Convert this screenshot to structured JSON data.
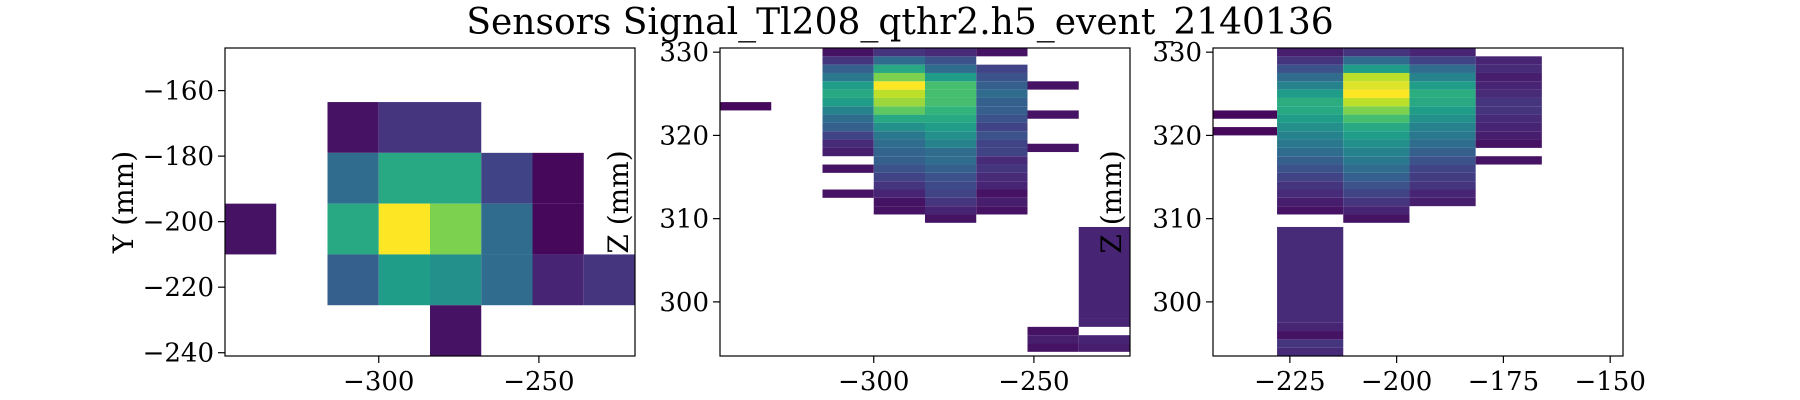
{
  "figure": {
    "title": "Sensors Signal_Tl208_qthr2.h5_event_2140136"
  },
  "chart_data": [
    {
      "type": "heatmap",
      "name": "xy",
      "xlabel": "",
      "ylabel": "Y (mm)",
      "xlim": [
        -348,
        -220
      ],
      "ylim": [
        -241,
        -147
      ],
      "xticks": [
        -300,
        -250
      ],
      "yticks": [
        -160,
        -180,
        -200,
        -220,
        -240
      ],
      "cells": [
        {
          "x0": -348,
          "x1": -332,
          "y0": -210,
          "y1": -194.5,
          "v": 0.05
        },
        {
          "x0": -316,
          "x1": -300,
          "y0": -179,
          "y1": -163.5,
          "v": 0.05
        },
        {
          "x0": -300,
          "x1": -284,
          "y0": -179,
          "y1": -163.5,
          "v": 0.15
        },
        {
          "x0": -284,
          "x1": -268,
          "y0": -179,
          "y1": -163.5,
          "v": 0.15
        },
        {
          "x0": -316,
          "x1": -300,
          "y0": -194.5,
          "y1": -179,
          "v": 0.35
        },
        {
          "x0": -300,
          "x1": -284,
          "y0": -194.5,
          "y1": -179,
          "v": 0.6
        },
        {
          "x0": -284,
          "x1": -268,
          "y0": -194.5,
          "y1": -179,
          "v": 0.6
        },
        {
          "x0": -268,
          "x1": -252,
          "y0": -194.5,
          "y1": -179,
          "v": 0.2
        },
        {
          "x0": -252,
          "x1": -236,
          "y0": -194.5,
          "y1": -179,
          "v": 0.02
        },
        {
          "x0": -316,
          "x1": -300,
          "y0": -210,
          "y1": -194.5,
          "v": 0.6
        },
        {
          "x0": -300,
          "x1": -284,
          "y0": -210,
          "y1": -194.5,
          "v": 1.0
        },
        {
          "x0": -284,
          "x1": -268,
          "y0": -210,
          "y1": -194.5,
          "v": 0.8
        },
        {
          "x0": -268,
          "x1": -252,
          "y0": -210,
          "y1": -194.5,
          "v": 0.35
        },
        {
          "x0": -252,
          "x1": -236,
          "y0": -210,
          "y1": -194.5,
          "v": 0.02
        },
        {
          "x0": -316,
          "x1": -300,
          "y0": -225.5,
          "y1": -210,
          "v": 0.3
        },
        {
          "x0": -300,
          "x1": -284,
          "y0": -225.5,
          "y1": -210,
          "v": 0.55
        },
        {
          "x0": -284,
          "x1": -268,
          "y0": -225.5,
          "y1": -210,
          "v": 0.5
        },
        {
          "x0": -268,
          "x1": -252,
          "y0": -225.5,
          "y1": -210,
          "v": 0.35
        },
        {
          "x0": -252,
          "x1": -236,
          "y0": -225.5,
          "y1": -210,
          "v": 0.1
        },
        {
          "x0": -236,
          "x1": -220,
          "y0": -225.5,
          "y1": -210,
          "v": 0.15
        },
        {
          "x0": -284,
          "x1": -268,
          "y0": -241,
          "y1": -225.5,
          "v": 0.05
        }
      ]
    },
    {
      "type": "heatmap",
      "name": "xz",
      "xlabel": "",
      "ylabel": "Z (mm)",
      "xlim": [
        -348,
        -220
      ],
      "ylim": [
        293.5,
        330.5
      ],
      "xticks": [
        -300,
        -250
      ],
      "yticks": [
        300,
        310,
        320,
        330
      ],
      "columns": [
        {
          "x0": -348,
          "x1": -332,
          "bins": [
            [
              323,
              324,
              0.02
            ]
          ]
        },
        {
          "x0": -316,
          "x1": -300,
          "bins": [
            [
              312.5,
              313.5,
              0.05
            ],
            [
              315.5,
              316.5,
              0.05
            ],
            [
              317.5,
              318.5,
              0.08
            ],
            [
              318.5,
              319.5,
              0.12
            ],
            [
              319.5,
              320.5,
              0.2
            ],
            [
              320.5,
              321.5,
              0.3
            ],
            [
              321.5,
              322.5,
              0.35
            ],
            [
              322.5,
              323.5,
              0.45
            ],
            [
              323.5,
              324.5,
              0.55
            ],
            [
              324.5,
              325.5,
              0.6
            ],
            [
              325.5,
              326.5,
              0.55
            ],
            [
              326.5,
              327.5,
              0.4
            ],
            [
              327.5,
              328.5,
              0.3
            ],
            [
              328.5,
              329.5,
              0.15
            ],
            [
              329.5,
              330.5,
              0.05
            ]
          ]
        },
        {
          "x0": -300,
          "x1": -284,
          "bins": [
            [
              310.5,
              311.5,
              0.05
            ],
            [
              311.5,
              312.5,
              0.05
            ],
            [
              312.5,
              313.5,
              0.1
            ],
            [
              313.5,
              314.5,
              0.15
            ],
            [
              314.5,
              315.5,
              0.2
            ],
            [
              315.5,
              316.5,
              0.25
            ],
            [
              316.5,
              317.5,
              0.3
            ],
            [
              317.5,
              318.5,
              0.32
            ],
            [
              318.5,
              319.5,
              0.35
            ],
            [
              319.5,
              320.5,
              0.4
            ],
            [
              320.5,
              321.5,
              0.5
            ],
            [
              321.5,
              322.5,
              0.6
            ],
            [
              322.5,
              323.5,
              0.75
            ],
            [
              323.5,
              324.5,
              0.85
            ],
            [
              324.5,
              325.5,
              0.9
            ],
            [
              325.5,
              326.5,
              1.0
            ],
            [
              326.5,
              327.5,
              0.8
            ],
            [
              327.5,
              328.5,
              0.6
            ],
            [
              328.5,
              329.5,
              0.35
            ],
            [
              329.5,
              330.5,
              0.15
            ]
          ]
        },
        {
          "x0": -284,
          "x1": -268,
          "bins": [
            [
              309.5,
              310.5,
              0.05
            ],
            [
              310.5,
              311.5,
              0.1
            ],
            [
              311.5,
              312.5,
              0.15
            ],
            [
              312.5,
              313.5,
              0.2
            ],
            [
              313.5,
              314.5,
              0.22
            ],
            [
              314.5,
              315.5,
              0.25
            ],
            [
              315.5,
              316.5,
              0.3
            ],
            [
              316.5,
              317.5,
              0.35
            ],
            [
              317.5,
              318.5,
              0.35
            ],
            [
              318.5,
              319.5,
              0.45
            ],
            [
              319.5,
              320.5,
              0.5
            ],
            [
              320.5,
              321.5,
              0.55
            ],
            [
              321.5,
              322.5,
              0.6
            ],
            [
              322.5,
              323.5,
              0.65
            ],
            [
              323.5,
              324.5,
              0.7
            ],
            [
              324.5,
              325.5,
              0.7
            ],
            [
              325.5,
              326.5,
              0.7
            ],
            [
              326.5,
              327.5,
              0.55
            ],
            [
              327.5,
              328.5,
              0.35
            ],
            [
              328.5,
              329.5,
              0.25
            ],
            [
              329.5,
              330.5,
              0.12
            ]
          ]
        },
        {
          "x0": -268,
          "x1": -252,
          "bins": [
            [
              310.5,
              311.5,
              0.05
            ],
            [
              311.5,
              312.5,
              0.08
            ],
            [
              312.5,
              313.5,
              0.05
            ],
            [
              313.5,
              314.5,
              0.1
            ],
            [
              314.5,
              315.5,
              0.12
            ],
            [
              315.5,
              316.5,
              0.15
            ],
            [
              316.5,
              317.5,
              0.12
            ],
            [
              317.5,
              318.5,
              0.2
            ],
            [
              318.5,
              319.5,
              0.2
            ],
            [
              319.5,
              320.5,
              0.25
            ],
            [
              320.5,
              321.5,
              0.2
            ],
            [
              321.5,
              322.5,
              0.25
            ],
            [
              322.5,
              323.5,
              0.3
            ],
            [
              323.5,
              324.5,
              0.3
            ],
            [
              324.5,
              325.5,
              0.35
            ],
            [
              325.5,
              326.5,
              0.3
            ],
            [
              326.5,
              327.5,
              0.25
            ],
            [
              327.5,
              328.5,
              0.2
            ],
            [
              329.5,
              330.5,
              0.05
            ]
          ]
        },
        {
          "x0": -252,
          "x1": -236,
          "bins": [
            [
              294,
              295,
              0.05
            ],
            [
              295,
              296,
              0.08
            ],
            [
              296,
              297,
              0.05
            ],
            [
              318,
              319,
              0.05
            ],
            [
              322,
              323,
              0.05
            ],
            [
              325.5,
              326.5,
              0.05
            ]
          ]
        },
        {
          "x0": -236,
          "x1": -220,
          "bins": [
            [
              294,
              295,
              0.08
            ],
            [
              295,
              296,
              0.1
            ],
            [
              297,
              298,
              0.1
            ],
            [
              298,
              309,
              0.1
            ]
          ]
        }
      ]
    },
    {
      "type": "heatmap",
      "name": "yz",
      "xlabel": "",
      "ylabel": "Z (mm)",
      "xlim": [
        -243,
        -147
      ],
      "ylim": [
        293.5,
        330.5
      ],
      "xticks": [
        -225,
        -200,
        -175,
        -150
      ],
      "yticks": [
        300,
        310,
        320,
        330
      ],
      "columns": [
        {
          "x0": -243,
          "x1": -228,
          "bins": [
            [
              320,
              321,
              0.02
            ],
            [
              322,
              323,
              0.02
            ]
          ]
        },
        {
          "x0": -228,
          "x1": -212.5,
          "bins": [
            [
              293.5,
              294.5,
              0.12
            ],
            [
              294.5,
              295.5,
              0.15
            ],
            [
              295.5,
              296.5,
              0.05
            ],
            [
              296.5,
              297.5,
              0.1
            ],
            [
              297.5,
              309,
              0.12
            ],
            [
              310.5,
              311.5,
              0.05
            ],
            [
              311.5,
              312.5,
              0.08
            ],
            [
              312.5,
              313.5,
              0.12
            ],
            [
              313.5,
              314.5,
              0.15
            ],
            [
              314.5,
              315.5,
              0.2
            ],
            [
              315.5,
              316.5,
              0.25
            ],
            [
              316.5,
              317.5,
              0.3
            ],
            [
              317.5,
              318.5,
              0.35
            ],
            [
              318.5,
              319.5,
              0.4
            ],
            [
              319.5,
              320.5,
              0.45
            ],
            [
              320.5,
              321.5,
              0.5
            ],
            [
              321.5,
              322.5,
              0.55
            ],
            [
              322.5,
              323.5,
              0.6
            ],
            [
              323.5,
              324.5,
              0.62
            ],
            [
              324.5,
              325.5,
              0.55
            ],
            [
              325.5,
              326.5,
              0.45
            ],
            [
              326.5,
              327.5,
              0.35
            ],
            [
              327.5,
              328.5,
              0.25
            ],
            [
              328.5,
              329.5,
              0.15
            ],
            [
              329.5,
              330.5,
              0.08
            ]
          ]
        },
        {
          "x0": -212.5,
          "x1": -197,
          "bins": [
            [
              309.5,
              310.5,
              0.05
            ],
            [
              310.5,
              311.5,
              0.1
            ],
            [
              311.5,
              312.5,
              0.15
            ],
            [
              312.5,
              313.5,
              0.2
            ],
            [
              313.5,
              314.5,
              0.25
            ],
            [
              314.5,
              315.5,
              0.3
            ],
            [
              315.5,
              316.5,
              0.35
            ],
            [
              316.5,
              317.5,
              0.4
            ],
            [
              317.5,
              318.5,
              0.45
            ],
            [
              318.5,
              319.5,
              0.5
            ],
            [
              319.5,
              320.5,
              0.55
            ],
            [
              320.5,
              321.5,
              0.6
            ],
            [
              321.5,
              322.5,
              0.7
            ],
            [
              322.5,
              323.5,
              0.8
            ],
            [
              323.5,
              324.5,
              0.9
            ],
            [
              324.5,
              325.5,
              1.0
            ],
            [
              325.5,
              326.5,
              0.95
            ],
            [
              326.5,
              327.5,
              0.9
            ],
            [
              327.5,
              328.5,
              0.55
            ],
            [
              328.5,
              329.5,
              0.35
            ],
            [
              329.5,
              330.5,
              0.15
            ]
          ]
        },
        {
          "x0": -197,
          "x1": -181.5,
          "bins": [
            [
              311.5,
              312.5,
              0.08
            ],
            [
              312.5,
              313.5,
              0.1
            ],
            [
              313.5,
              314.5,
              0.15
            ],
            [
              314.5,
              315.5,
              0.18
            ],
            [
              315.5,
              316.5,
              0.2
            ],
            [
              316.5,
              317.5,
              0.25
            ],
            [
              317.5,
              318.5,
              0.3
            ],
            [
              318.5,
              319.5,
              0.35
            ],
            [
              319.5,
              320.5,
              0.4
            ],
            [
              320.5,
              321.5,
              0.45
            ],
            [
              321.5,
              322.5,
              0.5
            ],
            [
              322.5,
              323.5,
              0.55
            ],
            [
              323.5,
              324.5,
              0.6
            ],
            [
              324.5,
              325.5,
              0.62
            ],
            [
              325.5,
              326.5,
              0.55
            ],
            [
              326.5,
              327.5,
              0.45
            ],
            [
              327.5,
              328.5,
              0.35
            ],
            [
              328.5,
              329.5,
              0.2
            ],
            [
              329.5,
              330.5,
              0.1
            ]
          ]
        },
        {
          "x0": -181.5,
          "x1": -166,
          "bins": [
            [
              316.5,
              317.5,
              0.05
            ],
            [
              318.5,
              319.5,
              0.05
            ],
            [
              319.5,
              320.5,
              0.08
            ],
            [
              320.5,
              321.5,
              0.1
            ],
            [
              321.5,
              322.5,
              0.12
            ],
            [
              322.5,
              323.5,
              0.15
            ],
            [
              323.5,
              324.5,
              0.15
            ],
            [
              324.5,
              325.5,
              0.12
            ],
            [
              325.5,
              326.5,
              0.1
            ],
            [
              326.5,
              327.5,
              0.08
            ],
            [
              327.5,
              328.5,
              0.12
            ],
            [
              328.5,
              329.5,
              0.1
            ]
          ]
        }
      ]
    }
  ]
}
